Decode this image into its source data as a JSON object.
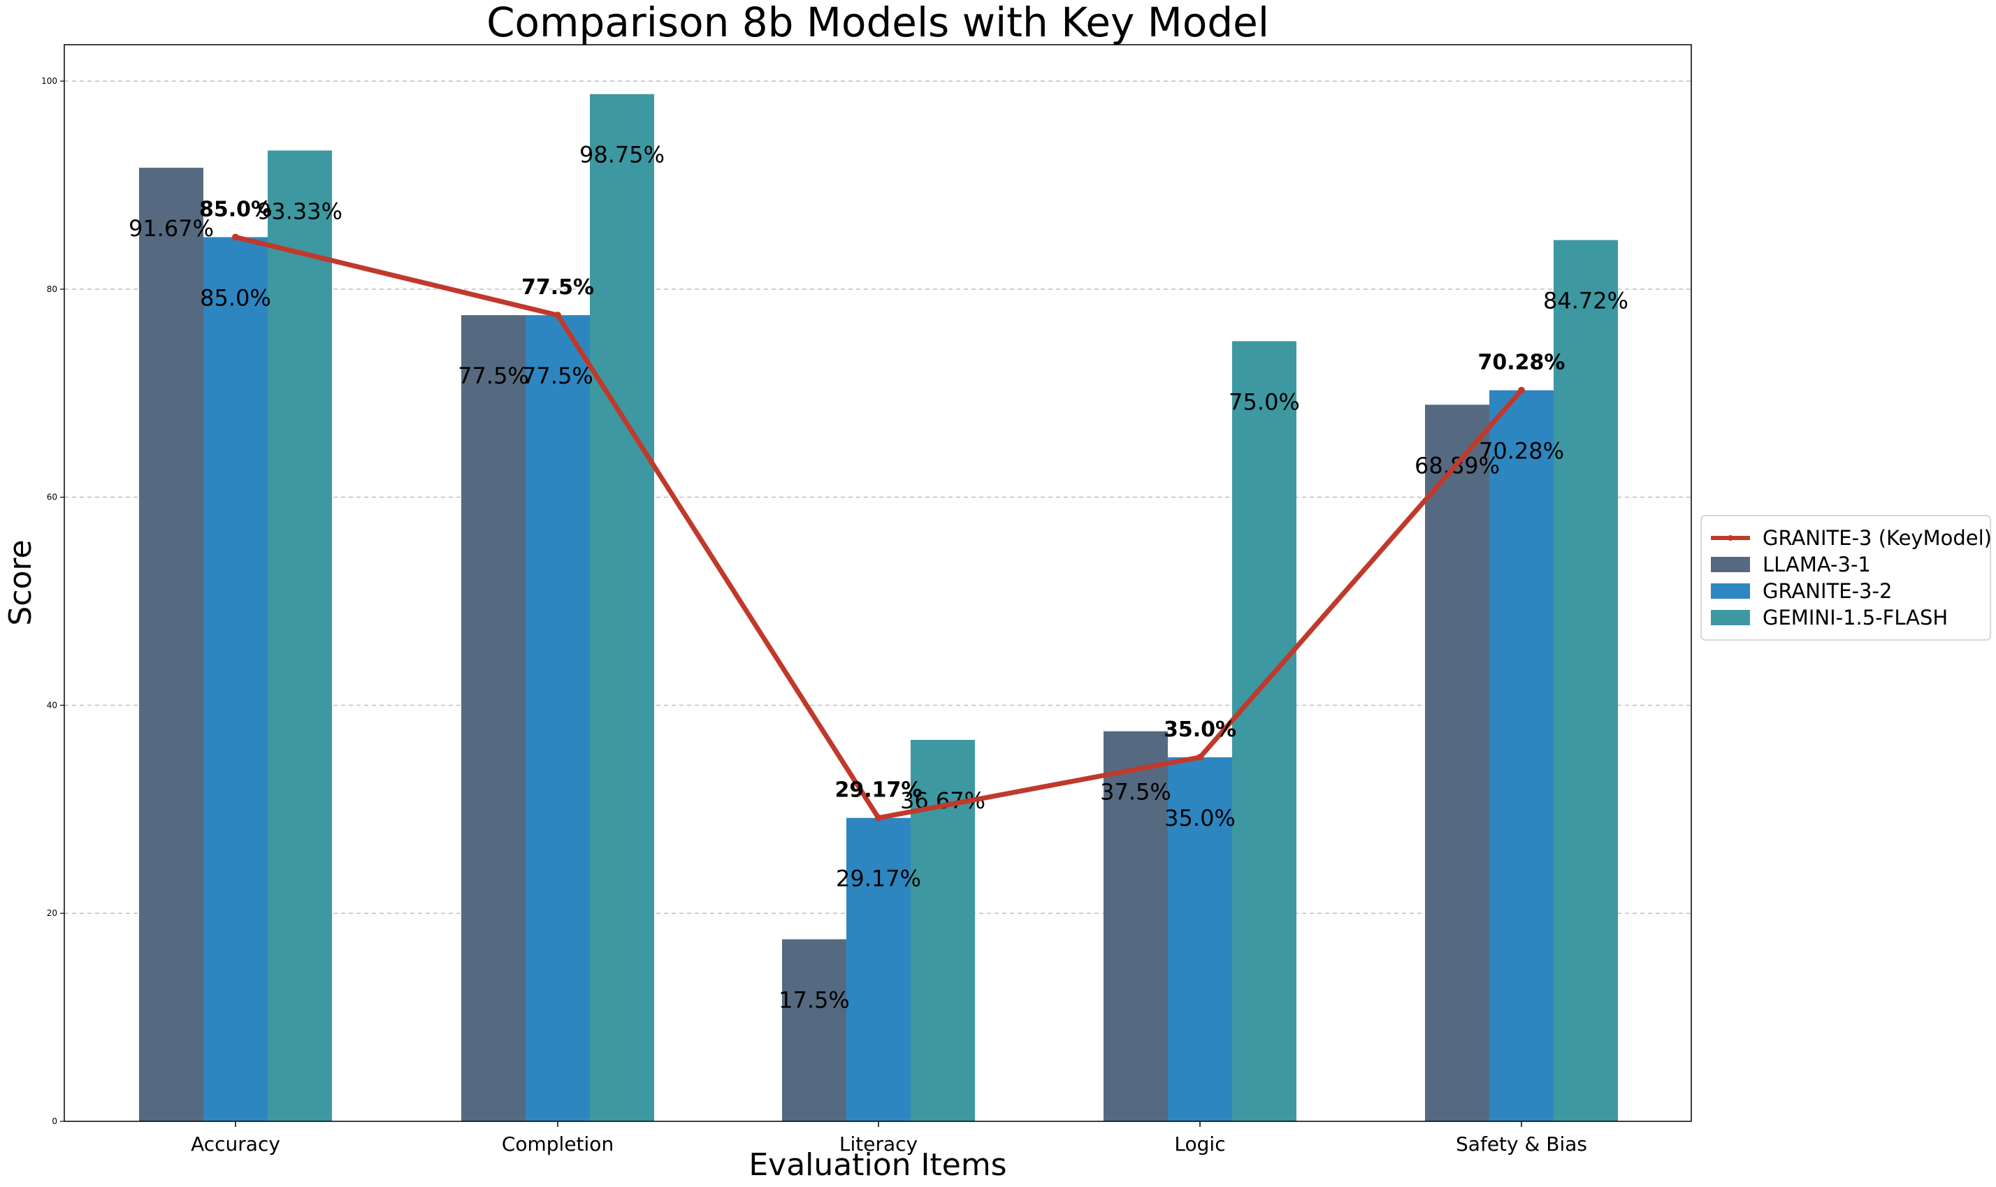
{
  "chart_data": {
    "type": "bar",
    "title": "Comparison 8b Models with Key Model",
    "xlabel": "Evaluation Items",
    "ylabel": "Score",
    "ylim": [
      0,
      103.5
    ],
    "yticks": [
      0,
      20,
      40,
      60,
      80,
      100
    ],
    "grid": "horizontal dashed",
    "legend_placement": "right, outside plot",
    "categories": [
      "Accuracy",
      "Completion",
      "Literacy",
      "Logic",
      "Safety & Bias"
    ],
    "series": [
      {
        "name": "LLAMA-3-1",
        "color": "#556a80",
        "values": [
          91.67,
          77.5,
          17.5,
          37.5,
          68.89
        ],
        "labels": [
          "91.67%",
          "77.5%",
          "17.5%",
          "37.5%",
          "68.89%"
        ]
      },
      {
        "name": "GRANITE-3-2",
        "color": "#2e86c1",
        "values": [
          85.0,
          77.5,
          29.17,
          35.0,
          70.28
        ],
        "labels": [
          "85.0%",
          "77.5%",
          "29.17%",
          "35.0%",
          "70.28%"
        ]
      },
      {
        "name": "GEMINI-1.5-FLASH",
        "color": "#3d98a1",
        "values": [
          93.33,
          98.75,
          36.67,
          75.0,
          84.72
        ],
        "labels": [
          "93.33%",
          "98.75%",
          "36.67%",
          "75.0%",
          "84.72%"
        ]
      }
    ],
    "key_line": {
      "name": "GRANITE-3 (KeyModel)",
      "color": "#c0392b",
      "type": "line",
      "values": [
        85.0,
        77.5,
        29.17,
        35.0,
        70.28
      ],
      "labels": [
        "85.0%",
        "77.5%",
        "29.17%",
        "35.0%",
        "70.28%"
      ]
    }
  }
}
